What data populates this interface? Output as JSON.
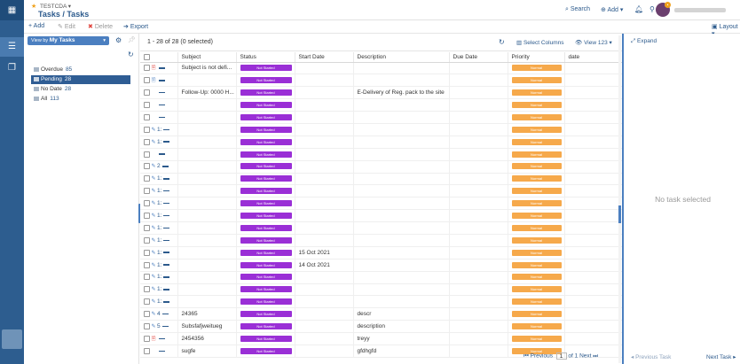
{
  "header": {
    "app_name": "TESTCDA",
    "page_title": "Tasks / Tasks",
    "search_label": "Search",
    "add_label": "Add"
  },
  "toolbar": {
    "add_label": "Add",
    "edit_label": "Edit",
    "delete_label": "Delete",
    "export_label": "Export",
    "layout_label": "Layout"
  },
  "sidebar": {
    "viewby_prefix": "View by",
    "viewby_value": "My Tasks",
    "filters": [
      {
        "label": "Overdue",
        "count": "85"
      },
      {
        "label": "Pending",
        "count": "28"
      },
      {
        "label": "No Date",
        "count": "28"
      },
      {
        "label": "All",
        "count": "113"
      }
    ]
  },
  "grid": {
    "count_text": "1 - 28 of 28 (0 selected)",
    "select_columns_label": "Select Columns",
    "view_label": "View 123",
    "columns": [
      "Subject",
      "Status",
      "Start Date",
      "Description",
      "Due Date",
      "Priority",
      "date"
    ],
    "rows": [
      {
        "icon": "doc-red",
        "num": "",
        "subject": "Subject is not defi...",
        "status": "Not Started",
        "start": "",
        "desc": "",
        "due": "",
        "priority": "Normal"
      },
      {
        "icon": "doc-blue",
        "num": "",
        "subject": "",
        "status": "Not Started",
        "start": "",
        "desc": "",
        "due": "",
        "priority": "Normal"
      },
      {
        "icon": "",
        "num": "",
        "subject": "Follow-Up: 0000 H...",
        "status": "Not Started",
        "start": "",
        "desc": "E-Delivery of Reg. pack to the site",
        "due": "",
        "priority": "Normal"
      },
      {
        "icon": "",
        "num": "",
        "subject": "",
        "status": "Not Started",
        "start": "",
        "desc": "",
        "due": "",
        "priority": "Normal"
      },
      {
        "icon": "",
        "num": "",
        "subject": "",
        "status": "Not Started",
        "start": "",
        "desc": "",
        "due": "",
        "priority": "Normal"
      },
      {
        "icon": "clip",
        "num": "1:",
        "subject": "",
        "status": "Not Started",
        "start": "",
        "desc": "",
        "due": "",
        "priority": "Normal"
      },
      {
        "icon": "clip",
        "num": "1:",
        "subject": "",
        "status": "Not Started",
        "start": "",
        "desc": "",
        "due": "",
        "priority": "Normal"
      },
      {
        "icon": "",
        "num": "",
        "subject": "",
        "status": "Not Started",
        "start": "",
        "desc": "",
        "due": "",
        "priority": "Normal"
      },
      {
        "icon": "clip",
        "num": "2",
        "subject": "",
        "status": "Not Started",
        "start": "",
        "desc": "",
        "due": "",
        "priority": "Normal"
      },
      {
        "icon": "clip",
        "num": "1:",
        "subject": "",
        "status": "Not Started",
        "start": "",
        "desc": "",
        "due": "",
        "priority": "Normal"
      },
      {
        "icon": "clip",
        "num": "1:",
        "subject": "",
        "status": "Not Started",
        "start": "",
        "desc": "",
        "due": "",
        "priority": "Normal"
      },
      {
        "icon": "clip",
        "num": "1:",
        "subject": "",
        "status": "Not Started",
        "start": "",
        "desc": "",
        "due": "",
        "priority": "Normal"
      },
      {
        "icon": "clip",
        "num": "1:",
        "subject": "",
        "status": "Not Started",
        "start": "",
        "desc": "",
        "due": "",
        "priority": "Normal"
      },
      {
        "icon": "clip",
        "num": "1:",
        "subject": "",
        "status": "Not Started",
        "start": "",
        "desc": "",
        "due": "",
        "priority": "Normal"
      },
      {
        "icon": "clip",
        "num": "1:",
        "subject": "",
        "status": "Not Started",
        "start": "",
        "desc": "",
        "due": "",
        "priority": "Normal"
      },
      {
        "icon": "clip",
        "num": "1:",
        "subject": "",
        "status": "Not Started",
        "start": "15 Oct 2021",
        "desc": "",
        "due": "",
        "priority": "Normal"
      },
      {
        "icon": "clip",
        "num": "1:",
        "subject": "",
        "status": "Not Started",
        "start": "14 Oct 2021",
        "desc": "",
        "due": "",
        "priority": "Normal"
      },
      {
        "icon": "clip",
        "num": "1:",
        "subject": "",
        "status": "Not Started",
        "start": "",
        "desc": "",
        "due": "",
        "priority": "Normal"
      },
      {
        "icon": "clip",
        "num": "1:",
        "subject": "",
        "status": "Not Started",
        "start": "",
        "desc": "",
        "due": "",
        "priority": "Normal"
      },
      {
        "icon": "clip",
        "num": "1:",
        "subject": "",
        "status": "Not Started",
        "start": "",
        "desc": "",
        "due": "",
        "priority": "Normal"
      },
      {
        "icon": "clip",
        "num": "4",
        "subject": "24365",
        "status": "Not Started",
        "start": "",
        "desc": "descr",
        "due": "",
        "priority": "Normal"
      },
      {
        "icon": "clip",
        "num": "5",
        "subject": "Subsfafjweitueg",
        "status": "Not Started",
        "start": "",
        "desc": "description",
        "due": "",
        "priority": "Normal"
      },
      {
        "icon": "doc-red",
        "num": "",
        "subject": "2454356",
        "status": "Not Started",
        "start": "",
        "desc": "treyy",
        "due": "",
        "priority": "Normal"
      },
      {
        "icon": "",
        "num": "",
        "subject": "sugfe",
        "status": "Not Started",
        "start": "",
        "desc": "gfdhgfd",
        "due": "",
        "priority": "Normal"
      }
    ]
  },
  "pager": {
    "previous_label": "Previous",
    "page_value": "1",
    "of_label": "of 1",
    "next_label": "Next"
  },
  "detail": {
    "expand_label": "Expand",
    "empty_text": "No task selected",
    "prev_task_label": "Previous Task",
    "next_task_label": "Next Task"
  },
  "colors": {
    "primary": "#2c5a8c",
    "status_purple": "#9a2fd6",
    "priority_orange": "#f6a94b",
    "delete_red": "#e0443d"
  }
}
